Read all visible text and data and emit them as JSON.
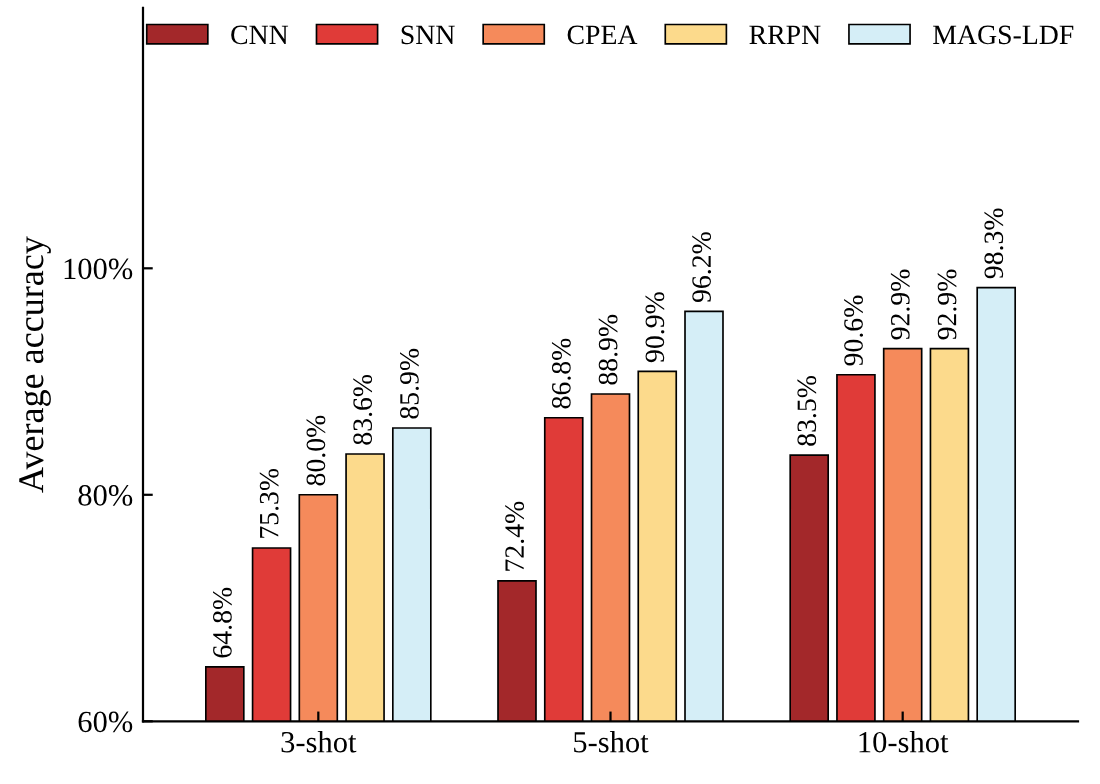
{
  "chart_data": {
    "type": "bar",
    "ylabel": "Average accuracy",
    "categories": [
      "3-shot",
      "5-shot",
      "10-shot"
    ],
    "series": [
      {
        "name": "CNN",
        "color": "#a3282a",
        "values": [
          64.8,
          72.4,
          83.5
        ],
        "value_labels": [
          "64.8%",
          "72.4%",
          "83.5%"
        ]
      },
      {
        "name": "SNN",
        "color": "#e03b38",
        "values": [
          75.3,
          86.8,
          90.6
        ],
        "value_labels": [
          "75.3%",
          "86.8%",
          "90.6%"
        ]
      },
      {
        "name": "CPEA",
        "color": "#f58a5b",
        "values": [
          80.0,
          88.9,
          92.9
        ],
        "value_labels": [
          "80.0%",
          "88.9%",
          "92.9%"
        ]
      },
      {
        "name": "RRPN",
        "color": "#fcda8c",
        "values": [
          83.6,
          90.9,
          92.9
        ],
        "value_labels": [
          "83.6%",
          "90.9%",
          "92.9%"
        ]
      },
      {
        "name": "MAGS-LDF",
        "color": "#d5eef7",
        "values": [
          85.9,
          96.2,
          98.3
        ],
        "value_labels": [
          "85.9%",
          "96.2%",
          "98.3%"
        ]
      }
    ],
    "ylim": [
      60,
      123
    ],
    "yticks": [
      {
        "value": 60,
        "label": "60%"
      },
      {
        "value": 80,
        "label": "80%"
      },
      {
        "value": 100,
        "label": "100%"
      }
    ],
    "grid": false,
    "legend": "top"
  }
}
